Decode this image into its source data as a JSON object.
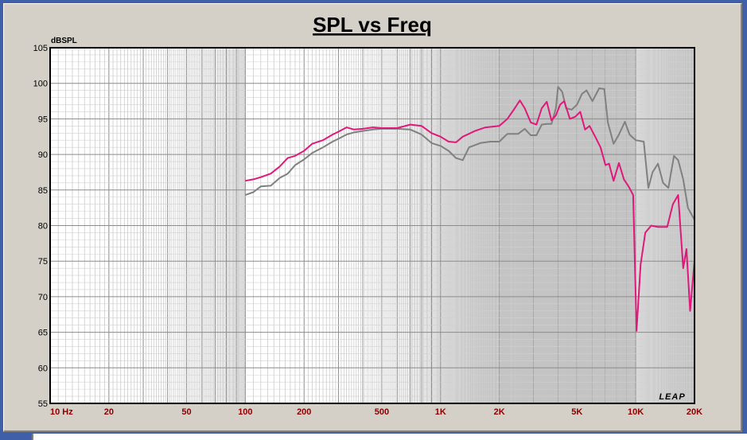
{
  "chart_data": {
    "type": "line",
    "title": "SPL vs Freq",
    "ylabel": "dBSPL",
    "xscale": "log",
    "xlim": [
      10,
      20000
    ],
    "ylim": [
      55,
      105
    ],
    "grid": true,
    "watermark": "LEAP",
    "yticks": [
      "105",
      "100",
      "95",
      "90",
      "85",
      "80",
      "75",
      "70",
      "65",
      "60",
      "55"
    ],
    "xticks": [
      {
        "value": 10,
        "label": "10 Hz"
      },
      {
        "value": 20,
        "label": "20"
      },
      {
        "value": 50,
        "label": "50"
      },
      {
        "value": 100,
        "label": "100"
      },
      {
        "value": 200,
        "label": "200"
      },
      {
        "value": 500,
        "label": "500"
      },
      {
        "value": 1000,
        "label": "1K"
      },
      {
        "value": 2000,
        "label": "2K"
      },
      {
        "value": 5000,
        "label": "5K"
      },
      {
        "value": 10000,
        "label": "10K"
      },
      {
        "value": 20000,
        "label": "20K"
      }
    ],
    "series": [
      {
        "color": "#e0187a",
        "points": [
          [
            100,
            86.3
          ],
          [
            110,
            86.5
          ],
          [
            120,
            86.8
          ],
          [
            135,
            87.3
          ],
          [
            150,
            88.3
          ],
          [
            165,
            89.5
          ],
          [
            180,
            89.8
          ],
          [
            200,
            90.5
          ],
          [
            220,
            91.5
          ],
          [
            250,
            92.0
          ],
          [
            280,
            92.8
          ],
          [
            300,
            93.2
          ],
          [
            330,
            93.8
          ],
          [
            360,
            93.5
          ],
          [
            400,
            93.6
          ],
          [
            450,
            93.8
          ],
          [
            500,
            93.7
          ],
          [
            600,
            93.7
          ],
          [
            700,
            94.2
          ],
          [
            800,
            94.0
          ],
          [
            900,
            93.0
          ],
          [
            1000,
            92.5
          ],
          [
            1100,
            91.8
          ],
          [
            1200,
            91.7
          ],
          [
            1300,
            92.5
          ],
          [
            1500,
            93.3
          ],
          [
            1700,
            93.8
          ],
          [
            2000,
            94.0
          ],
          [
            2200,
            95.0
          ],
          [
            2400,
            96.5
          ],
          [
            2550,
            97.6
          ],
          [
            2700,
            96.5
          ],
          [
            2900,
            94.5
          ],
          [
            3100,
            94.2
          ],
          [
            3300,
            96.5
          ],
          [
            3500,
            97.4
          ],
          [
            3700,
            94.8
          ],
          [
            3900,
            95.5
          ],
          [
            4100,
            97.0
          ],
          [
            4300,
            97.5
          ],
          [
            4600,
            95.0
          ],
          [
            4900,
            95.3
          ],
          [
            5200,
            96.0
          ],
          [
            5500,
            93.5
          ],
          [
            5800,
            94.0
          ],
          [
            6200,
            92.5
          ],
          [
            6600,
            91.0
          ],
          [
            7000,
            88.5
          ],
          [
            7300,
            88.7
          ],
          [
            7700,
            86.3
          ],
          [
            8200,
            88.8
          ],
          [
            8700,
            86.5
          ],
          [
            9200,
            85.5
          ],
          [
            9700,
            84.3
          ],
          [
            10100,
            65.2
          ],
          [
            10600,
            74.5
          ],
          [
            11200,
            79.0
          ],
          [
            12000,
            80.0
          ],
          [
            13000,
            79.8
          ],
          [
            14500,
            79.8
          ],
          [
            15500,
            83.0
          ],
          [
            16500,
            84.3
          ],
          [
            17500,
            74.0
          ],
          [
            18200,
            76.7
          ],
          [
            19000,
            68.0
          ],
          [
            20000,
            75.0
          ]
        ]
      },
      {
        "color": "#808080",
        "points": [
          [
            100,
            84.3
          ],
          [
            110,
            84.7
          ],
          [
            120,
            85.5
          ],
          [
            135,
            85.6
          ],
          [
            150,
            86.7
          ],
          [
            165,
            87.3
          ],
          [
            180,
            88.5
          ],
          [
            200,
            89.3
          ],
          [
            220,
            90.2
          ],
          [
            250,
            91.0
          ],
          [
            280,
            91.8
          ],
          [
            300,
            92.2
          ],
          [
            330,
            92.8
          ],
          [
            360,
            93.1
          ],
          [
            400,
            93.3
          ],
          [
            450,
            93.5
          ],
          [
            500,
            93.6
          ],
          [
            600,
            93.6
          ],
          [
            700,
            93.5
          ],
          [
            800,
            92.8
          ],
          [
            900,
            91.6
          ],
          [
            1000,
            91.2
          ],
          [
            1100,
            90.5
          ],
          [
            1200,
            89.5
          ],
          [
            1300,
            89.2
          ],
          [
            1400,
            91.0
          ],
          [
            1600,
            91.6
          ],
          [
            1800,
            91.8
          ],
          [
            2000,
            91.8
          ],
          [
            2200,
            92.9
          ],
          [
            2500,
            92.9
          ],
          [
            2700,
            93.6
          ],
          [
            2900,
            92.7
          ],
          [
            3100,
            92.7
          ],
          [
            3300,
            94.2
          ],
          [
            3500,
            94.3
          ],
          [
            3700,
            94.3
          ],
          [
            3900,
            96.5
          ],
          [
            4000,
            99.5
          ],
          [
            4200,
            98.8
          ],
          [
            4400,
            96.5
          ],
          [
            4700,
            96.3
          ],
          [
            5000,
            97.0
          ],
          [
            5300,
            98.5
          ],
          [
            5600,
            99.0
          ],
          [
            6000,
            97.5
          ],
          [
            6500,
            99.3
          ],
          [
            6900,
            99.2
          ],
          [
            7200,
            94.5
          ],
          [
            7700,
            91.5
          ],
          [
            8200,
            92.8
          ],
          [
            8800,
            94.6
          ],
          [
            9300,
            92.8
          ],
          [
            10000,
            92.0
          ],
          [
            11000,
            91.8
          ],
          [
            11600,
            85.3
          ],
          [
            12200,
            87.5
          ],
          [
            13000,
            88.7
          ],
          [
            13800,
            86.0
          ],
          [
            14700,
            85.3
          ],
          [
            15700,
            89.8
          ],
          [
            16500,
            89.2
          ],
          [
            17500,
            86.5
          ],
          [
            18500,
            82.5
          ],
          [
            20000,
            80.8
          ]
        ]
      }
    ]
  }
}
